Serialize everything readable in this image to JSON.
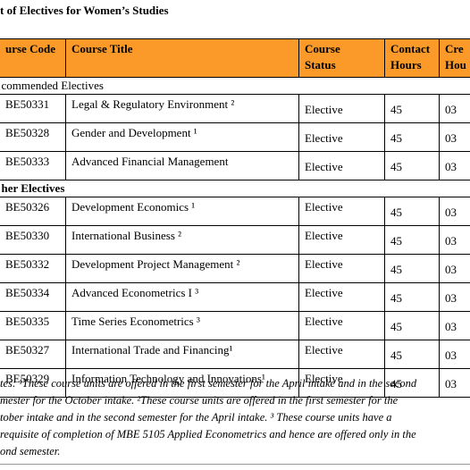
{
  "title": "t of Electives for Women’s Studies",
  "table": {
    "header": [
      [
        "urse Code"
      ],
      [
        "Course Title"
      ],
      [
        "Course",
        "Status"
      ],
      [
        "Contact",
        "Hours"
      ],
      [
        "Cre",
        "Hou"
      ]
    ],
    "sections": [
      {
        "label": "commended Electives",
        "rows": [
          [
            "BE50331",
            "Legal & Regulatory Environment ²",
            "Elective",
            "45",
            "03"
          ],
          [
            "BE50328",
            "Gender and Development ¹",
            "Elective",
            "45",
            "03"
          ],
          [
            "BE50333",
            "Advanced Financial Management",
            "Elective",
            "45",
            "03"
          ]
        ]
      },
      {
        "label": "her Electives",
        "rows": [
          [
            "BE50326",
            "Development Economics ¹",
            "Elective",
            "45",
            "03"
          ],
          [
            "BE50330",
            "International Business ²",
            "Elective",
            "45",
            "03"
          ],
          [
            "BE50332",
            "Development Project Management ²",
            "Elective",
            "45",
            "03"
          ],
          [
            "BE50334",
            "Advanced Econometrics I ³",
            "Elective",
            "45",
            "03"
          ],
          [
            "BE50335",
            "Time Series Econometrics ³",
            "Elective",
            "45",
            "03"
          ],
          [
            "BE50327",
            "International Trade and Financing¹",
            "Elective",
            "45",
            "03"
          ],
          [
            "BE50329",
            "Information Technology and Innovations¹",
            "Elective",
            "45",
            "03"
          ]
        ]
      }
    ]
  },
  "notes": [
    "tes: ¹These course units are offered in the first semester for the April intake and in the second",
    "mester for the October intake.  ²These course units are offered in the first semester for the",
    "tober intake and in the second semester for the April intake.  ³ These course units have a",
    "requisite of completion of MBE 5105 Applied Econometrics and hence are offered only in the",
    "ond semester."
  ]
}
